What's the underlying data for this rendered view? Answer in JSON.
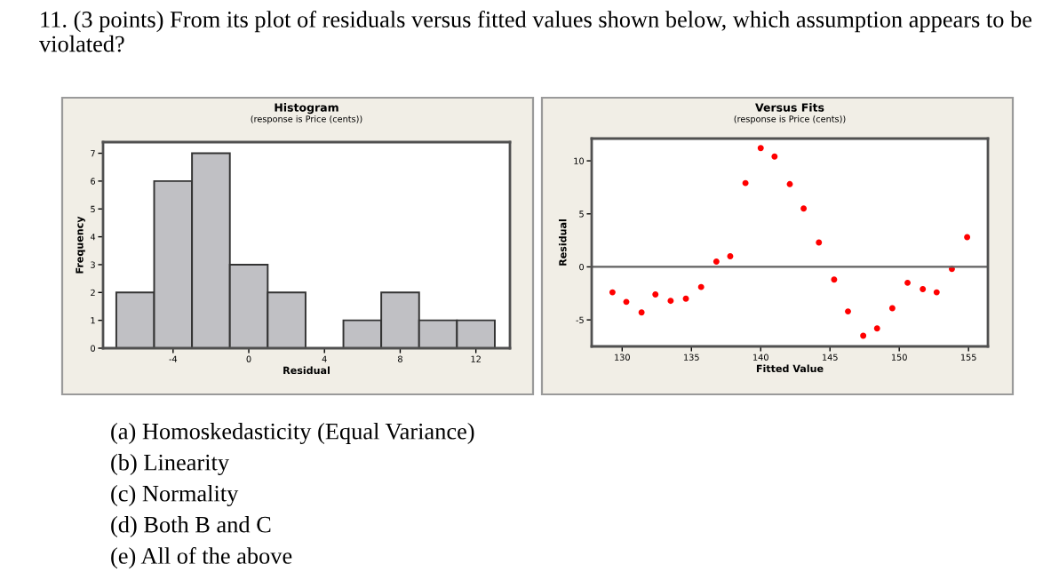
{
  "chart_data": [
    {
      "type": "other",
      "title": "11. (3 points) From its plot of residuals versus fitted values shown below, which assumption appears to be violated?",
      "annotations": [
        "(a) Homoskedasticity (Equal Variance)",
        "(b) Linearity",
        "(c) Normality",
        "(d) Both B and C",
        "(e) All of the above"
      ]
    },
    {
      "type": "histogram",
      "title": "Histogram",
      "subtitle": "(response is Price (cents))",
      "xlabel": "Residual",
      "ylabel": "Frequency",
      "bins": [
        -7,
        -5,
        -3,
        -1,
        1,
        3,
        5,
        7,
        9,
        11,
        13
      ],
      "values": [
        2,
        6,
        7,
        3,
        2,
        0,
        1,
        2,
        1,
        1
      ],
      "color": "#c0c0c4",
      "xlim": [
        -7.7,
        13.8
      ],
      "xticks": [
        -4,
        0,
        4,
        8,
        12
      ],
      "ylim": [
        0,
        7.4
      ],
      "yticks": [
        0,
        1,
        2,
        3,
        4,
        5,
        6,
        7
      ],
      "grid": false,
      "legend": false
    },
    {
      "type": "scatter",
      "title": "Versus Fits",
      "subtitle": "(response is Price (cents))",
      "xlabel": "Fitted Value",
      "ylabel": "Residual",
      "color": "#ff0000",
      "marker": "circle",
      "x": [
        129.3,
        130.3,
        131.4,
        132.4,
        133.5,
        134.6,
        135.7,
        136.8,
        137.8,
        138.9,
        140.0,
        141.0,
        142.1,
        143.1,
        144.2,
        145.3,
        146.3,
        147.4,
        148.4,
        149.5,
        150.6,
        151.7,
        152.7,
        153.8,
        154.9
      ],
      "values": [
        -2.4,
        -3.3,
        -4.3,
        -2.6,
        -3.2,
        -3.0,
        -1.9,
        0.5,
        1.0,
        7.9,
        11.2,
        10.4,
        7.8,
        5.5,
        2.3,
        -1.2,
        -4.2,
        -6.5,
        -5.8,
        -3.9,
        -1.5,
        -2.1,
        -2.4,
        -0.2,
        2.8
      ],
      "xlim": [
        127.8,
        156.4
      ],
      "xticks": [
        130,
        135,
        140,
        145,
        150,
        155
      ],
      "ylim": [
        -7.5,
        12.1
      ],
      "yticks": [
        -5,
        0,
        5,
        10
      ],
      "ref_lines": [
        {
          "axis": "y",
          "value": 0,
          "color": "#606060"
        }
      ],
      "grid": false,
      "legend": false
    }
  ]
}
